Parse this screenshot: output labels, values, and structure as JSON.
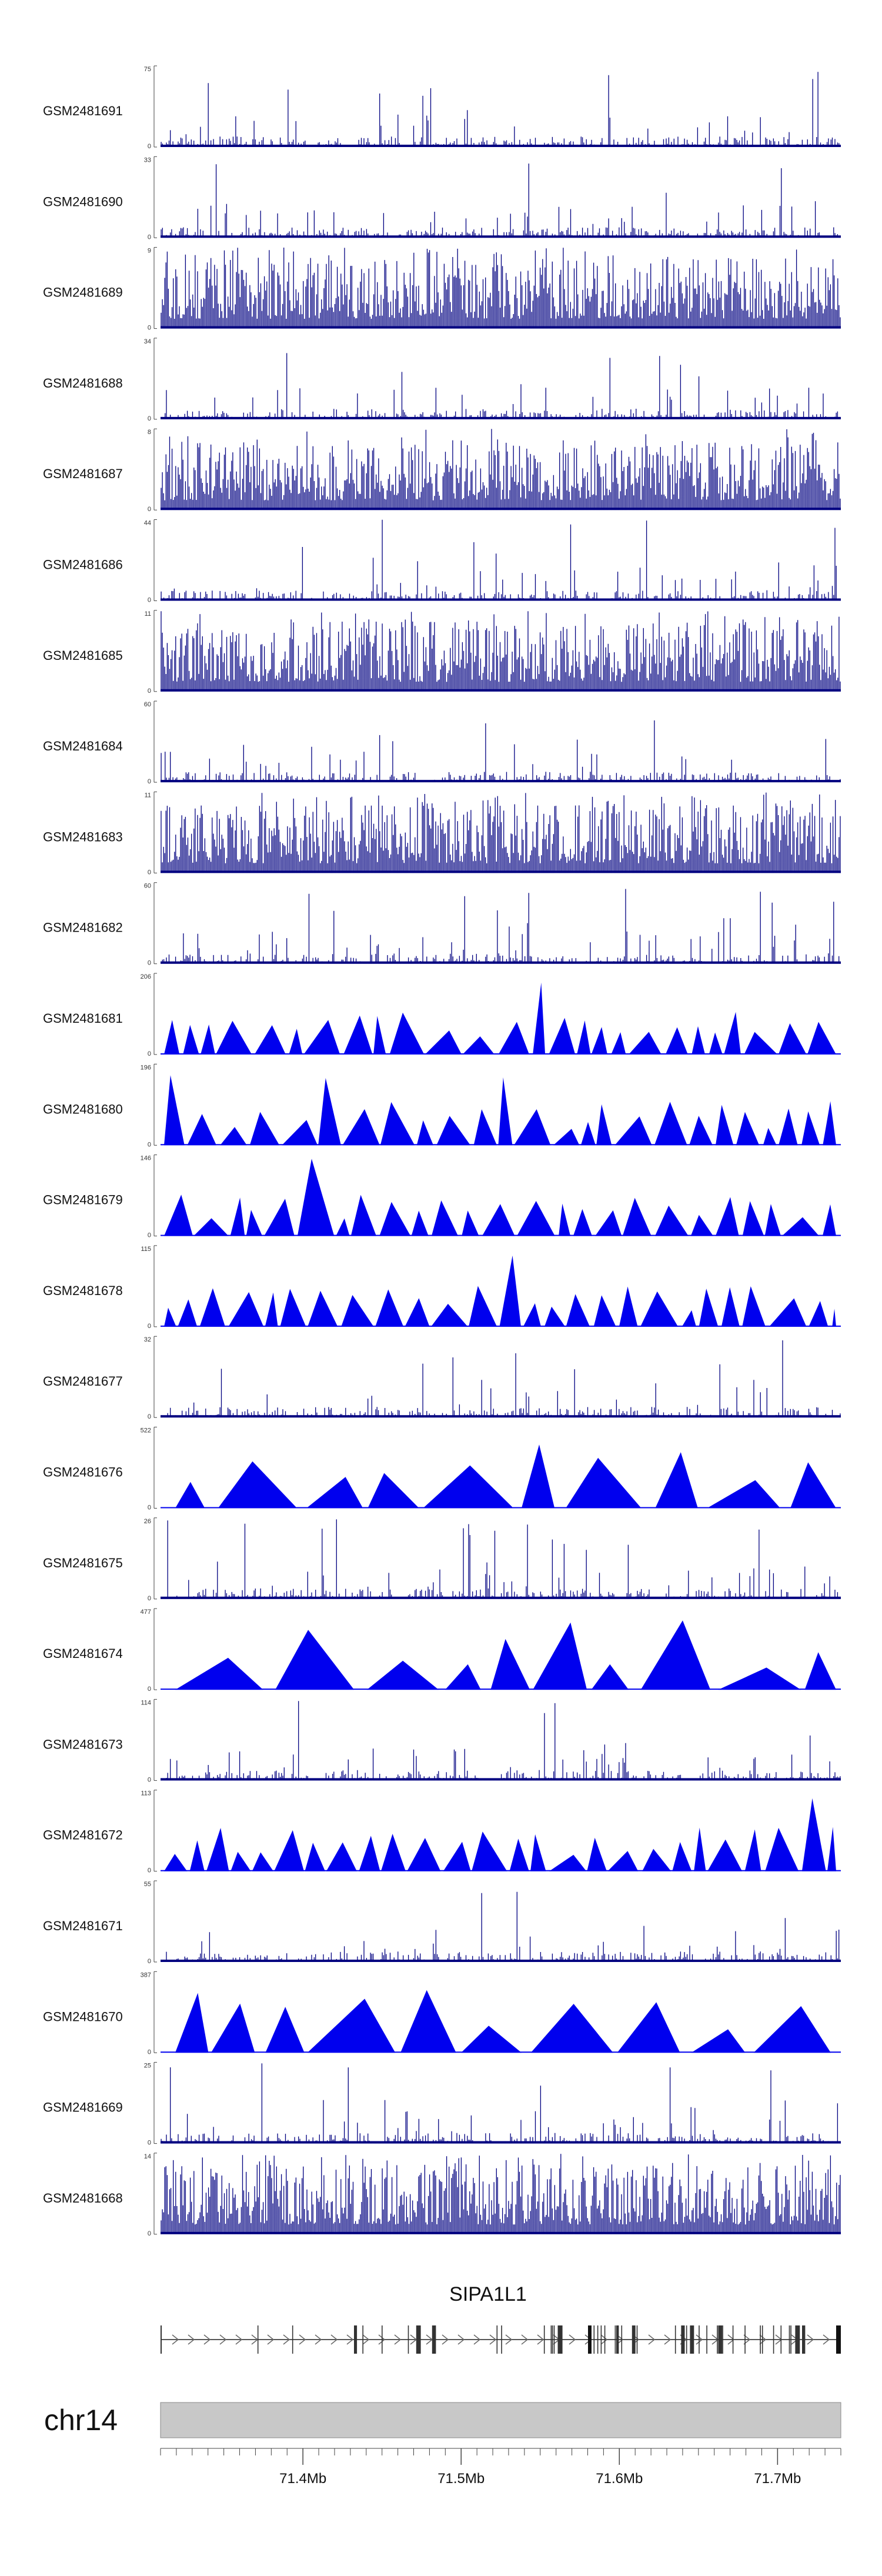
{
  "chart_data": {
    "type": "genome-tracks",
    "tracks": [
      {
        "name": "GSM2481691",
        "ymax": 75,
        "style": "bars"
      },
      {
        "name": "GSM2481690",
        "ymax": 33,
        "style": "bars"
      },
      {
        "name": "GSM2481689",
        "ymax": 9,
        "style": "bars"
      },
      {
        "name": "GSM2481688",
        "ymax": 34,
        "style": "bars"
      },
      {
        "name": "GSM2481687",
        "ymax": 8,
        "style": "bars"
      },
      {
        "name": "GSM2481686",
        "ymax": 44,
        "style": "bars"
      },
      {
        "name": "GSM2481685",
        "ymax": 11,
        "style": "bars"
      },
      {
        "name": "GSM2481684",
        "ymax": 60,
        "style": "bars"
      },
      {
        "name": "GSM2481683",
        "ymax": 11,
        "style": "bars"
      },
      {
        "name": "GSM2481682",
        "ymax": 60,
        "style": "bars"
      },
      {
        "name": "GSM2481681",
        "ymax": 206,
        "style": "triangles"
      },
      {
        "name": "GSM2481680",
        "ymax": 196,
        "style": "triangles"
      },
      {
        "name": "GSM2481679",
        "ymax": 146,
        "style": "triangles"
      },
      {
        "name": "GSM2481678",
        "ymax": 115,
        "style": "triangles"
      },
      {
        "name": "GSM2481677",
        "ymax": 32,
        "style": "bars"
      },
      {
        "name": "GSM2481676",
        "ymax": 522,
        "style": "triangles"
      },
      {
        "name": "GSM2481675",
        "ymax": 26,
        "style": "bars"
      },
      {
        "name": "GSM2481674",
        "ymax": 477,
        "style": "triangles"
      },
      {
        "name": "GSM2481673",
        "ymax": 114,
        "style": "bars"
      },
      {
        "name": "GSM2481672",
        "ymax": 113,
        "style": "triangles"
      },
      {
        "name": "GSM2481671",
        "ymax": 55,
        "style": "bars"
      },
      {
        "name": "GSM2481670",
        "ymax": 387,
        "style": "triangles"
      },
      {
        "name": "GSM2481669",
        "ymax": 25,
        "style": "bars"
      },
      {
        "name": "GSM2481668",
        "ymax": 14,
        "style": "bars"
      }
    ],
    "ymin_label": "0",
    "gene": {
      "name": "SIPA1L1",
      "strand": "+"
    },
    "chromosome": "chr14",
    "xlim": [
      71.31,
      71.74
    ],
    "x_ticks": [
      {
        "value": 71.4,
        "label": "71.4Mb"
      },
      {
        "value": 71.5,
        "label": "71.5Mb"
      },
      {
        "value": 71.6,
        "label": "71.6Mb"
      },
      {
        "value": 71.7,
        "label": "71.7Mb"
      }
    ],
    "colors": {
      "signal": "#0000ee",
      "signal_dark": "#000080",
      "ideogram": "#c8c8c8",
      "gene": "#333333"
    }
  }
}
